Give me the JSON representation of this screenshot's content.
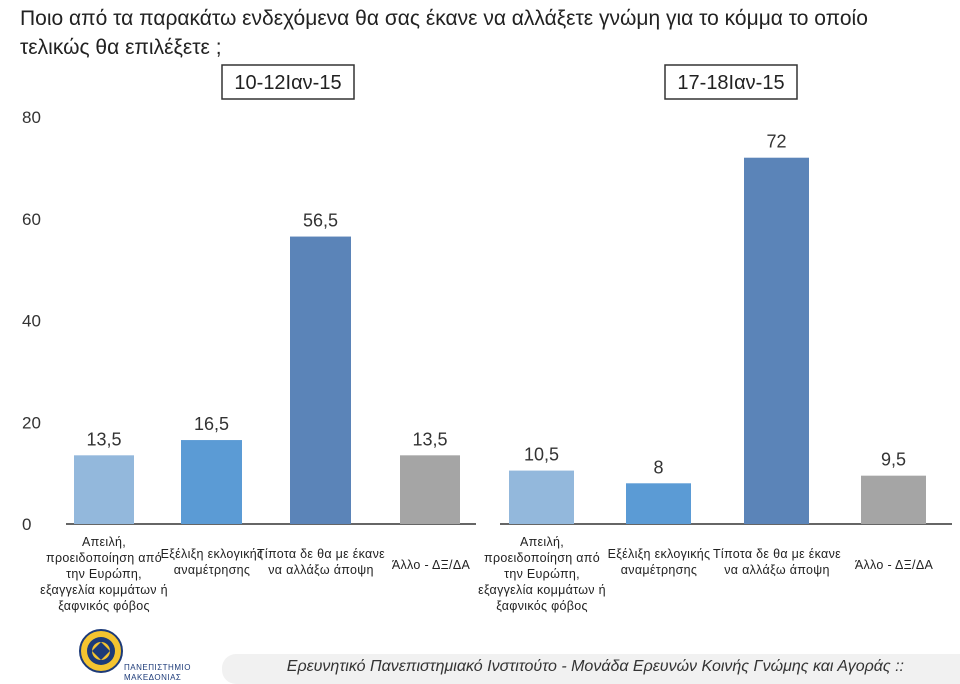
{
  "title": "Ποιο από τα παρακάτω ενδεχόμενα θα σας έκανε να αλλάξετε γνώμη για το κόμμα το οποίο τελικώς θα επιλέξετε ;",
  "footer": "Ερευνητικό Πανεπιστημιακό Ινστιτούτο - Μονάδα Ερευνών Κοινής Γνώμης και Αγοράς ::",
  "logo": {
    "line1": "ΠΑΝΕΠΙΣΤΗΜΙΟ",
    "line2": "ΜΑΚΕΔΟΝΙΑΣ"
  },
  "chart_data": {
    "type": "bar",
    "ylim": [
      0,
      80
    ],
    "yticks": [
      0,
      20,
      40,
      60,
      80
    ],
    "grid": false,
    "colors": [
      "#93b8dc",
      "#5b9bd5",
      "#5b84b8",
      "#a5a5a5"
    ],
    "categories": [
      "Απειλή, προειδοποίηση από την Ευρώπη, εξαγγελία κομμάτων ή ξαφνικός φόβος",
      "Εξέλιξη εκλογικής αναμέτρησης",
      "Τίποτα δε θα με έκανε να αλλάξω άποψη",
      "Άλλο - ΔΞ/ΔΑ"
    ],
    "panels": [
      {
        "label": "10-12Ιαν-15",
        "values": [
          13.5,
          16.5,
          56.5,
          13.5
        ],
        "value_labels": [
          "13,5",
          "16,5",
          "56,5",
          "13,5"
        ]
      },
      {
        "label": "17-18Ιαν-15",
        "values": [
          10.5,
          8,
          72,
          9.5
        ],
        "value_labels": [
          "10,5",
          "8",
          "72",
          "9,5"
        ]
      }
    ]
  }
}
